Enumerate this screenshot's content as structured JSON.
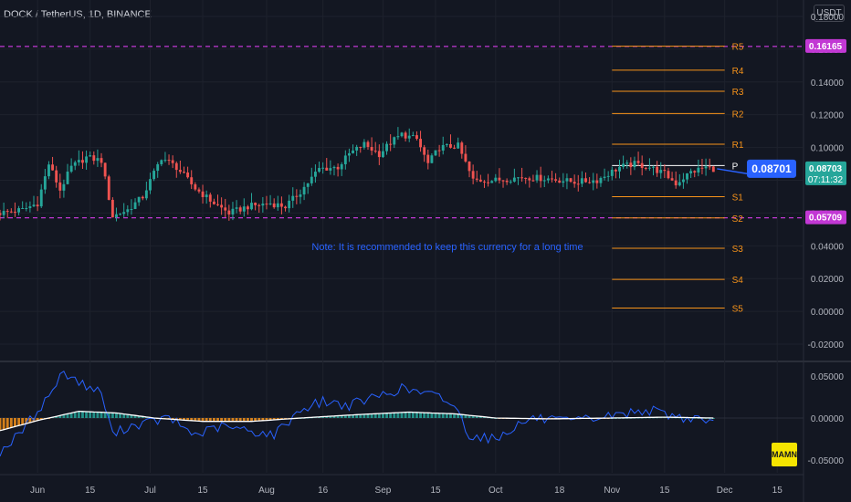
{
  "header": {
    "symbol": "DOCK / TetherUS, 1D, BINANCE",
    "currency": "USDT"
  },
  "annotation": "Note: It is recommended to keep this currency for a long time",
  "price_axis": {
    "ticks": [
      "0.18000",
      "0.16000",
      "0.14000",
      "0.12000",
      "0.10000",
      "0.08000",
      "0.06000",
      "0.04000",
      "0.02000",
      "0.00000",
      "-0.02000"
    ]
  },
  "indicator_axis": {
    "ticks": [
      "0.05000",
      "0.00000",
      "-0.05000"
    ]
  },
  "time_axis": {
    "labels": [
      "Jun",
      "15",
      "Jul",
      "15",
      "Aug",
      "16",
      "Sep",
      "15",
      "Oct",
      "18",
      "Nov",
      "15",
      "Dec",
      "15"
    ]
  },
  "badges": {
    "upper": "0.16165",
    "lower": "0.05709",
    "last_price": "0.08703",
    "countdown": "07:11:32",
    "callout": "0.08701",
    "indicator_tag": "MAMN"
  },
  "pivots": [
    {
      "label": "R5",
      "value": 0.1618
    },
    {
      "label": "R4",
      "value": 0.1472
    },
    {
      "label": "R3",
      "value": 0.1343
    },
    {
      "label": "R2",
      "value": 0.1207
    },
    {
      "label": "R1",
      "value": 0.102
    },
    {
      "label": "P",
      "value": 0.089
    },
    {
      "label": "S1",
      "value": 0.07
    },
    {
      "label": "S2",
      "value": 0.057
    },
    {
      "label": "S3",
      "value": 0.0385
    },
    {
      "label": "S4",
      "value": 0.0195
    },
    {
      "label": "S5",
      "value": 0.002
    }
  ],
  "colors": {
    "background": "#131722",
    "up": "#26a69a",
    "down": "#ef5350",
    "pivot": "#f7931a",
    "dashed": "#c238d4",
    "accent": "#2962ff",
    "histogram_up": "#26a69a",
    "histogram_down": "#f7931a",
    "oscillator": "#2962ff",
    "signal": "#ffffff"
  },
  "chart_data": {
    "type": "candlestick",
    "x_range": [
      "2021-05-22",
      "2021-12-22"
    ],
    "ylim": [
      -0.03,
      0.19
    ],
    "ylim_indicator": [
      -0.065,
      0.065
    ],
    "horizontal_levels": [
      0.16165,
      0.05709
    ],
    "price_waypoints": [
      [
        "2021-05-22",
        0.06
      ],
      [
        "2021-05-28",
        0.062
      ],
      [
        "2021-06-01",
        0.066
      ],
      [
        "2021-06-04",
        0.09
      ],
      [
        "2021-06-07",
        0.074
      ],
      [
        "2021-06-10",
        0.088
      ],
      [
        "2021-06-14",
        0.094
      ],
      [
        "2021-06-18",
        0.092
      ],
      [
        "2021-06-21",
        0.058
      ],
      [
        "2021-06-25",
        0.062
      ],
      [
        "2021-06-29",
        0.07
      ],
      [
        "2021-07-04",
        0.094
      ],
      [
        "2021-07-08",
        0.088
      ],
      [
        "2021-07-13",
        0.075
      ],
      [
        "2021-07-18",
        0.066
      ],
      [
        "2021-07-22",
        0.06
      ],
      [
        "2021-07-27",
        0.064
      ],
      [
        "2021-08-02",
        0.066
      ],
      [
        "2021-08-06",
        0.064
      ],
      [
        "2021-08-10",
        0.073
      ],
      [
        "2021-08-15",
        0.087
      ],
      [
        "2021-08-20",
        0.088
      ],
      [
        "2021-08-23",
        0.096
      ],
      [
        "2021-08-27",
        0.102
      ],
      [
        "2021-08-31",
        0.096
      ],
      [
        "2021-09-03",
        0.103
      ],
      [
        "2021-09-06",
        0.108
      ],
      [
        "2021-09-10",
        0.105
      ],
      [
        "2021-09-13",
        0.09
      ],
      [
        "2021-09-16",
        0.1
      ],
      [
        "2021-09-21",
        0.101
      ],
      [
        "2021-09-25",
        0.08
      ],
      [
        "2021-10-01",
        0.08
      ],
      [
        "2021-10-08",
        0.082
      ],
      [
        "2021-10-15",
        0.081
      ],
      [
        "2021-10-22",
        0.079
      ],
      [
        "2021-10-28",
        0.08
      ],
      [
        "2021-11-03",
        0.088
      ],
      [
        "2021-11-07",
        0.09
      ],
      [
        "2021-11-11",
        0.088
      ],
      [
        "2021-11-15",
        0.084
      ],
      [
        "2021-11-18",
        0.078
      ],
      [
        "2021-11-22",
        0.085
      ],
      [
        "2021-11-26",
        0.088
      ],
      [
        "2021-11-28",
        0.087
      ]
    ],
    "oscillator_waypoints": [
      [
        "2021-05-22",
        -0.04
      ],
      [
        "2021-05-27",
        -0.02
      ],
      [
        "2021-06-03",
        0.02
      ],
      [
        "2021-06-08",
        0.055
      ],
      [
        "2021-06-13",
        0.04
      ],
      [
        "2021-06-18",
        0.03
      ],
      [
        "2021-06-21",
        -0.02
      ],
      [
        "2021-06-25",
        -0.01
      ],
      [
        "2021-07-01",
        -0.005
      ],
      [
        "2021-07-06",
        0.0
      ],
      [
        "2021-07-13",
        -0.02
      ],
      [
        "2021-07-20",
        -0.01
      ],
      [
        "2021-07-27",
        -0.015
      ],
      [
        "2021-08-03",
        -0.02
      ],
      [
        "2021-08-10",
        0.01
      ],
      [
        "2021-08-16",
        0.02
      ],
      [
        "2021-08-23",
        0.015
      ],
      [
        "2021-08-30",
        0.025
      ],
      [
        "2021-09-06",
        0.035
      ],
      [
        "2021-09-11",
        0.03
      ],
      [
        "2021-09-16",
        0.025
      ],
      [
        "2021-09-20",
        0.015
      ],
      [
        "2021-09-24",
        -0.02
      ],
      [
        "2021-10-01",
        -0.025
      ],
      [
        "2021-10-06",
        -0.01
      ],
      [
        "2021-10-11",
        0.0
      ],
      [
        "2021-10-20",
        -0.005
      ],
      [
        "2021-10-28",
        0.0
      ],
      [
        "2021-11-04",
        0.005
      ],
      [
        "2021-11-10",
        0.01
      ],
      [
        "2021-11-15",
        0.005
      ],
      [
        "2021-11-20",
        0.0
      ],
      [
        "2021-11-25",
        0.0
      ],
      [
        "2021-11-28",
        -0.006
      ]
    ],
    "signal_waypoints": [
      [
        "2021-05-22",
        -0.015
      ],
      [
        "2021-06-01",
        -0.003
      ],
      [
        "2021-06-12",
        0.008
      ],
      [
        "2021-06-22",
        0.006
      ],
      [
        "2021-07-02",
        0.0
      ],
      [
        "2021-07-15",
        -0.004
      ],
      [
        "2021-07-28",
        -0.004
      ],
      [
        "2021-08-10",
        0.0
      ],
      [
        "2021-08-25",
        0.004
      ],
      [
        "2021-09-08",
        0.007
      ],
      [
        "2021-09-20",
        0.005
      ],
      [
        "2021-10-01",
        0.0
      ],
      [
        "2021-10-15",
        -0.001
      ],
      [
        "2021-11-01",
        0.0
      ],
      [
        "2021-11-15",
        0.001
      ],
      [
        "2021-11-28",
        0.0
      ]
    ]
  }
}
